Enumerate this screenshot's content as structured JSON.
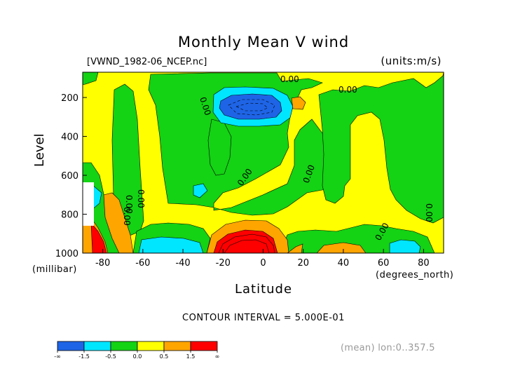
{
  "chart_data": {
    "type": "heatmap",
    "title": "Monthly Mean V wind",
    "source_label": "[VWND_1982-06_NCEP.nc]",
    "units_label": "(units:m/s)",
    "ylabel": "Level",
    "y_unit_label": "(millibar)",
    "xlabel": "Latitude",
    "x_unit_label": "(degrees_north)",
    "x_ticks": [
      -80,
      -60,
      -40,
      -20,
      0,
      20,
      40,
      60,
      80
    ],
    "y_ticks": [
      200,
      400,
      600,
      800,
      1000
    ],
    "xlim": [
      -90,
      90
    ],
    "ylim": [
      1000,
      70
    ],
    "contour_interval_label": "CONTOUR INTERVAL = 5.000E-01",
    "contour_labels": [
      "0.00",
      "0.00",
      "0.00",
      "0.00",
      "0.00",
      "0.00",
      "0.00",
      "0.00",
      "0.00",
      "0.00"
    ],
    "footer_label": "(mean) lon:0..357.5",
    "colorbar": {
      "labels": [
        "-∞",
        "-1.5",
        "-0.5",
        "0.0",
        "0.5",
        "1.5",
        "∞"
      ],
      "colors": [
        "#1e64e6",
        "#00e6ff",
        "#14d214",
        "#ffff00",
        "#ffa500",
        "#ff0000"
      ]
    },
    "colors": {
      "background": "#ffff00",
      "positive_weak": "#ffa500",
      "positive_strong": "#ff0000",
      "negative_weak": "#00e6ff",
      "negative_strong": "#1e64e6",
      "near_zero": "#14d214"
    },
    "regions": [
      {
        "name": "green-zone-upper-left",
        "color": "#14d214"
      },
      {
        "name": "green-zone-west",
        "color": "#14d214"
      },
      {
        "name": "green-zone-upper-center",
        "color": "#14d214"
      },
      {
        "name": "green-zone-center",
        "color": "#14d214"
      },
      {
        "name": "green-zone-east",
        "color": "#14d214"
      },
      {
        "name": "green-zone-lower-south",
        "color": "#14d214"
      },
      {
        "name": "negative-core-upper",
        "color": "#1e64e6"
      },
      {
        "name": "positive-core-surface",
        "color": "#ff0000"
      },
      {
        "name": "positive-zone-southern-edge",
        "color": "#ffa500"
      },
      {
        "name": "positive-zone-north-surface",
        "color": "#ffa500"
      }
    ]
  }
}
